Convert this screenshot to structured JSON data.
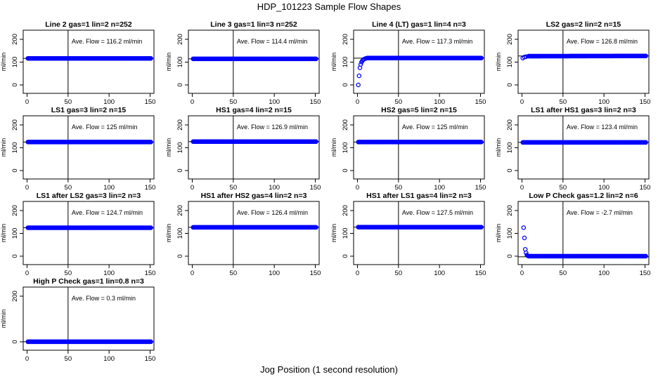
{
  "figure": {
    "title": "HDP_101223  Sample Flow Shapes",
    "xlabel": "Jog Position (1 second resolution)"
  },
  "colors": {
    "points": "#0000ff",
    "axes": "#000000",
    "background": "#ffffff"
  },
  "chart_data": [
    {
      "type": "scatter",
      "title": "Line 2 gas=1 lin=2 n=252",
      "ylabel": "ml/min",
      "xlim": [
        0,
        150
      ],
      "ylim": [
        0,
        200
      ],
      "xticks": [
        0,
        50,
        100,
        150
      ],
      "yticks": [
        0,
        100,
        200
      ],
      "vline_x": 50,
      "hline_y": 116.2,
      "annotation": "Ave. Flow =  116.2  ml/min",
      "series": [
        {
          "x": [
            1,
            151
          ],
          "y": [
            116.2,
            116.2
          ],
          "shape": "flat"
        }
      ]
    },
    {
      "type": "scatter",
      "title": "Line 3 gas=1 lin=3 n=252",
      "ylabel": "ml/min",
      "xlim": [
        0,
        150
      ],
      "ylim": [
        0,
        200
      ],
      "xticks": [
        0,
        50,
        100,
        150
      ],
      "yticks": [
        0,
        100,
        200
      ],
      "vline_x": 50,
      "hline_y": 114.4,
      "annotation": "Ave. Flow =  114.4  ml/min",
      "series": [
        {
          "x": [
            1,
            151
          ],
          "y": [
            114.4,
            114.4
          ],
          "shape": "flat"
        }
      ]
    },
    {
      "type": "scatter",
      "title": "Line 4 (LT) gas=1 lin=4 n=3",
      "ylabel": "ml/min",
      "xlim": [
        0,
        150
      ],
      "ylim": [
        0,
        200
      ],
      "xticks": [
        0,
        50,
        100,
        150
      ],
      "yticks": [
        0,
        100,
        200
      ],
      "vline_x": 50,
      "hline_y": 117.3,
      "annotation": "Ave. Flow =  117.3  ml/min",
      "series": [
        {
          "x": [
            1,
            2,
            3,
            4,
            5,
            6,
            7,
            8,
            10,
            12,
            151
          ],
          "y": [
            0,
            40,
            75,
            90,
            100,
            106,
            110,
            113,
            116,
            118,
            118
          ],
          "shape": "rise"
        }
      ]
    },
    {
      "type": "scatter",
      "title": "LS2 gas=2 lin=2 n=15",
      "ylabel": "ml/min",
      "xlim": [
        0,
        150
      ],
      "ylim": [
        0,
        200
      ],
      "xticks": [
        0,
        50,
        100,
        150
      ],
      "yticks": [
        0,
        100,
        200
      ],
      "vline_x": 50,
      "hline_y": 126.8,
      "annotation": "Ave. Flow =  126.8  ml/min",
      "series": [
        {
          "x": [
            1,
            3,
            5,
            8,
            151
          ],
          "y": [
            118,
            122,
            124,
            126,
            127
          ],
          "shape": "rise"
        }
      ]
    },
    {
      "type": "scatter",
      "title": "LS1 gas=3 lin=2 n=15",
      "ylabel": "ml/min",
      "xlim": [
        0,
        150
      ],
      "ylim": [
        0,
        200
      ],
      "xticks": [
        0,
        50,
        100,
        150
      ],
      "yticks": [
        0,
        100,
        200
      ],
      "vline_x": 50,
      "hline_y": 125,
      "annotation": "Ave. Flow =  125  ml/min",
      "series": [
        {
          "x": [
            1,
            151
          ],
          "y": [
            125,
            125
          ],
          "shape": "flat"
        }
      ]
    },
    {
      "type": "scatter",
      "title": "HS1 gas=4 lin=2 n=15",
      "ylabel": "ml/min",
      "xlim": [
        0,
        150
      ],
      "ylim": [
        0,
        200
      ],
      "xticks": [
        0,
        50,
        100,
        150
      ],
      "yticks": [
        0,
        100,
        200
      ],
      "vline_x": 50,
      "hline_y": 126.9,
      "annotation": "Ave. Flow =  126.9  ml/min",
      "series": [
        {
          "x": [
            1,
            151
          ],
          "y": [
            126.9,
            126.9
          ],
          "shape": "flat"
        }
      ]
    },
    {
      "type": "scatter",
      "title": "HS2 gas=5 lin=2 n=15",
      "ylabel": "ml/min",
      "xlim": [
        0,
        150
      ],
      "ylim": [
        0,
        200
      ],
      "xticks": [
        0,
        50,
        100,
        150
      ],
      "yticks": [
        0,
        100,
        200
      ],
      "vline_x": 50,
      "hline_y": 125,
      "annotation": "Ave. Flow =  125  ml/min",
      "series": [
        {
          "x": [
            1,
            151
          ],
          "y": [
            125,
            125
          ],
          "shape": "flat"
        }
      ]
    },
    {
      "type": "scatter",
      "title": "LS1 after HS1 gas=3 lin=2 n=3",
      "ylabel": "ml/min",
      "xlim": [
        0,
        150
      ],
      "ylim": [
        0,
        200
      ],
      "xticks": [
        0,
        50,
        100,
        150
      ],
      "yticks": [
        0,
        100,
        200
      ],
      "vline_x": 50,
      "hline_y": 123.4,
      "annotation": "Ave. Flow =  123.4  ml/min",
      "series": [
        {
          "x": [
            1,
            151
          ],
          "y": [
            123.4,
            123.4
          ],
          "shape": "flat"
        }
      ]
    },
    {
      "type": "scatter",
      "title": "LS1 after LS2 gas=3 lin=2 n=3",
      "ylabel": "ml/min",
      "xlim": [
        0,
        150
      ],
      "ylim": [
        0,
        200
      ],
      "xticks": [
        0,
        50,
        100,
        150
      ],
      "yticks": [
        0,
        100,
        200
      ],
      "vline_x": 50,
      "hline_y": 124.7,
      "annotation": "Ave. Flow =  124.7  ml/min",
      "series": [
        {
          "x": [
            1,
            151
          ],
          "y": [
            124.7,
            124.7
          ],
          "shape": "flat"
        }
      ]
    },
    {
      "type": "scatter",
      "title": "HS1 after HS2 gas=4 lin=2 n=3",
      "ylabel": "ml/min",
      "xlim": [
        0,
        150
      ],
      "ylim": [
        0,
        200
      ],
      "xticks": [
        0,
        50,
        100,
        150
      ],
      "yticks": [
        0,
        100,
        200
      ],
      "vline_x": 50,
      "hline_y": 126.4,
      "annotation": "Ave. Flow =  126.4  ml/min",
      "series": [
        {
          "x": [
            1,
            151
          ],
          "y": [
            126.4,
            126.4
          ],
          "shape": "flat"
        }
      ]
    },
    {
      "type": "scatter",
      "title": "HS1 after LS1 gas=4 lin=2 n=3",
      "ylabel": "ml/min",
      "xlim": [
        0,
        150
      ],
      "ylim": [
        0,
        200
      ],
      "xticks": [
        0,
        50,
        100,
        150
      ],
      "yticks": [
        0,
        100,
        200
      ],
      "vline_x": 50,
      "hline_y": 127.5,
      "annotation": "Ave. Flow =  127.5  ml/min",
      "series": [
        {
          "x": [
            1,
            151
          ],
          "y": [
            127.5,
            127.5
          ],
          "shape": "flat"
        }
      ]
    },
    {
      "type": "scatter",
      "title": "Low P Check gas=1.2 lin=2 n=6",
      "ylabel": "ml/min",
      "xlim": [
        0,
        150
      ],
      "ylim": [
        0,
        200
      ],
      "xticks": [
        0,
        50,
        100,
        150
      ],
      "yticks": [
        0,
        100,
        200
      ],
      "vline_x": 50,
      "hline_y": -2.7,
      "annotation": "Ave. Flow =  -2.7  ml/min",
      "series": [
        {
          "x": [
            2,
            3,
            4,
            5,
            6,
            7,
            8,
            151
          ],
          "y": [
            125,
            80,
            30,
            15,
            5,
            2,
            0,
            0
          ],
          "shape": "decay"
        }
      ]
    },
    {
      "type": "scatter",
      "title": "High P Check gas=1 lin=0.8 n=3",
      "ylabel": "ml/min",
      "xlim": [
        0,
        150
      ],
      "ylim": [
        0,
        200
      ],
      "xticks": [
        0,
        50,
        100,
        150
      ],
      "yticks": [
        0,
        200
      ],
      "vline_x": 50,
      "hline_y": 0.3,
      "annotation": "Ave. Flow =  0.3  ml/min",
      "series": [
        {
          "x": [
            1,
            151
          ],
          "y": [
            0.3,
            0.3
          ],
          "shape": "flat"
        }
      ]
    }
  ]
}
